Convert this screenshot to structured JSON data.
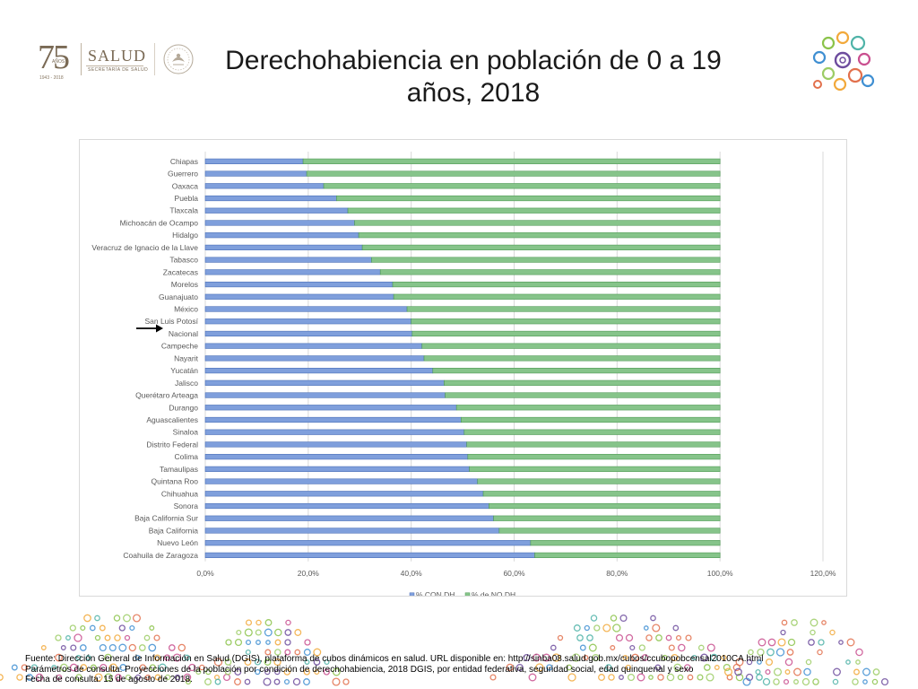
{
  "header": {
    "logo_number": "75",
    "logo_anos": "AÑOS",
    "logo_years": "1943 - 2018",
    "logo_salud": "SALUD",
    "logo_secretaria": "SECRETARÍA DE SALUD",
    "title_line1": "Derechohabiencia en población de 0 a 19",
    "title_line2": "años, 2018"
  },
  "colors": {
    "con_dh": "#7f9fdc",
    "con_dh_stroke": "#4a6fb7",
    "no_dh": "#86c48a",
    "no_dh_stroke": "#4f9a55",
    "grid": "#d9d9d9",
    "axis_text": "#595959"
  },
  "chart_data": {
    "type": "bar",
    "orientation": "horizontal",
    "stacked": true,
    "categories": [
      "Chiapas",
      "Guerrero",
      "Oaxaca",
      "Puebla",
      "Tlaxcala",
      "Michoacán de Ocampo",
      "Hidalgo",
      "Veracruz de Ignacio de la Llave",
      "Tabasco",
      "Zacatecas",
      "Morelos",
      "Guanajuato",
      "México",
      "San Luis Potosí",
      "Nacional",
      "Campeche",
      "Nayarit",
      "Yucatán",
      "Jalisco",
      "Querétaro Arteaga",
      "Durango",
      "Aguascalientes",
      "Sinaloa",
      "Distrito Federal",
      "Colima",
      "Tamaulipas",
      "Quintana Roo",
      "Chihuahua",
      "Sonora",
      "Baja California Sur",
      "Baja California",
      "Nuevo León",
      "Coahuila de Zaragoza"
    ],
    "series": [
      {
        "name": "% CON DH",
        "values": [
          0.19,
          0.197,
          0.23,
          0.255,
          0.277,
          0.29,
          0.298,
          0.305,
          0.323,
          0.34,
          0.364,
          0.366,
          0.392,
          0.4,
          0.402,
          0.421,
          0.425,
          0.442,
          0.464,
          0.466,
          0.488,
          0.497,
          0.503,
          0.508,
          0.51,
          0.513,
          0.529,
          0.54,
          0.551,
          0.56,
          0.571,
          0.632,
          0.64
        ]
      },
      {
        "name": "% de NO  DH",
        "values": [
          0.81,
          0.803,
          0.77,
          0.745,
          0.723,
          0.71,
          0.702,
          0.695,
          0.677,
          0.66,
          0.636,
          0.634,
          0.608,
          0.6,
          0.598,
          0.579,
          0.575,
          0.558,
          0.536,
          0.534,
          0.512,
          0.503,
          0.497,
          0.492,
          0.49,
          0.487,
          0.471,
          0.46,
          0.449,
          0.44,
          0.429,
          0.368,
          0.36
        ]
      }
    ],
    "xlim": [
      0,
      1.2
    ],
    "x_ticks": [
      "0,0%",
      "20,0%",
      "40,0%",
      "60,0%",
      "80,0%",
      "100,0%",
      "120,0%"
    ],
    "grid": true,
    "legend_position": "bottom",
    "annotation": "arrow pointing at Nacional"
  },
  "footer": {
    "line1": "Fuente: Dirección General de Información en Salud (DGIS), plataforma de cubos dinámicos en salud. URL disponible en: http://sinba08.salud.gob.mx/cubos/ccubopobcensal2010CA.html",
    "line2": "Parámetros de consulta: Proyecciones de la población por condición de derechohabiencia, 2018 DGIS, por entidad federativa, seguridad social, edad quinquenal y sexo",
    "line3": "Fecha de consulta: 15 de agosto de 2018."
  }
}
